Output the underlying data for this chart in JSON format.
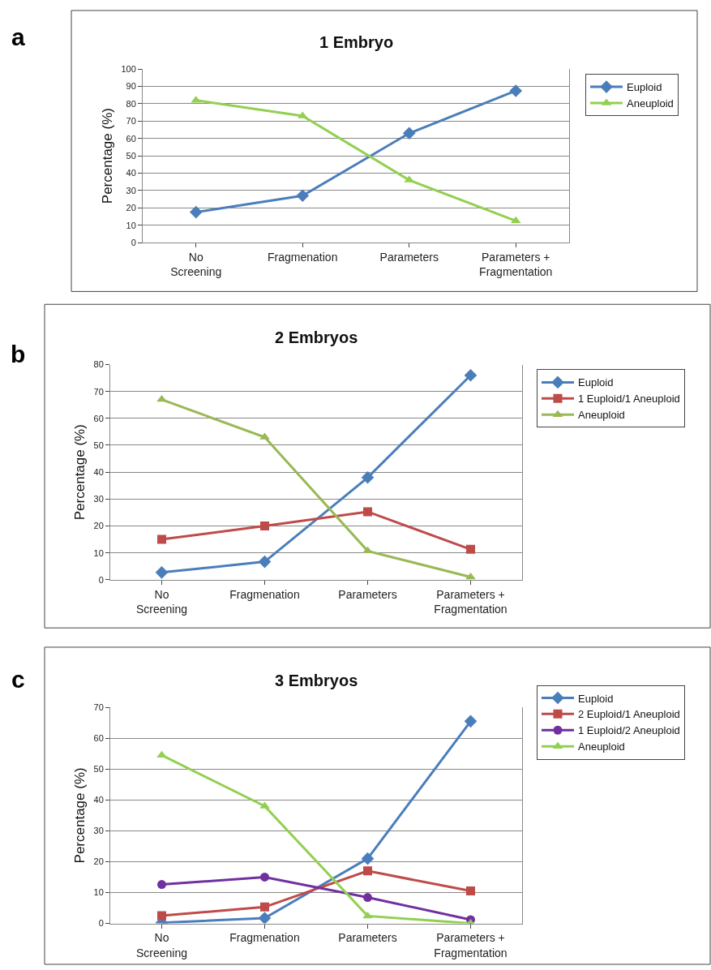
{
  "chart_data": [
    {
      "type": "line",
      "title": "1 Embryo",
      "ylabel": "Percentage (%)",
      "annotations": [
        "a"
      ],
      "categories": [
        "No\nScreening",
        "Fragmenation",
        "Parameters",
        "Parameters +\nFragmentation"
      ],
      "series": [
        {
          "name": "Euploid",
          "color": "#4a7ebb",
          "marker": "diamond",
          "values": [
            17.5,
            27,
            63,
            87.5
          ]
        },
        {
          "name": "Aneuploid",
          "color": "#92d050",
          "marker": "triangle",
          "values": [
            82,
            73,
            36,
            12.5
          ]
        }
      ],
      "ylim": [
        0,
        100
      ],
      "yticks": [
        0,
        10,
        20,
        30,
        40,
        50,
        60,
        70,
        80,
        90,
        100
      ],
      "grid": "y",
      "legend": "right",
      "line_style": "solid"
    },
    {
      "type": "line",
      "title": "2 Embryos",
      "ylabel": "Percentage (%)",
      "annotations": [
        "b"
      ],
      "categories": [
        "No\nScreening",
        "Fragmenation",
        "Parameters",
        "Parameters +\nFragmentation"
      ],
      "series": [
        {
          "name": "Euploid",
          "color": "#4a7ebb",
          "marker": "diamond",
          "values": [
            2.7,
            6.7,
            38,
            76
          ]
        },
        {
          "name": "1 Euploid/1 Aneuploid",
          "color": "#be4b48",
          "marker": "square",
          "values": [
            15,
            20,
            25.3,
            11.3
          ]
        },
        {
          "name": "Aneuploid",
          "color": "#98b954",
          "marker": "triangle",
          "values": [
            67,
            53,
            10.7,
            1
          ]
        }
      ],
      "ylim": [
        0,
        80
      ],
      "yticks": [
        0,
        10,
        20,
        30,
        40,
        50,
        60,
        70,
        80
      ],
      "grid": "y",
      "legend": "right",
      "line_style": "solid"
    },
    {
      "type": "line",
      "title": "3 Embryos",
      "ylabel": "Percentage (%)",
      "annotations": [
        "c"
      ],
      "categories": [
        "No\nScreening",
        "Fragmenation",
        "Parameters",
        "Parameters +\nFragmentation"
      ],
      "series": [
        {
          "name": "Euploid",
          "color": "#4a7ebb",
          "marker": "diamond",
          "values": [
            0.2,
            1.7,
            21,
            65.5
          ]
        },
        {
          "name": "2 Euploid/1 Aneuploid",
          "color": "#be4b48",
          "marker": "square",
          "values": [
            2.5,
            5.3,
            17,
            10.5
          ]
        },
        {
          "name": "1 Euploid/2 Aneuploid",
          "color": "#7030a0",
          "marker": "circle",
          "values": [
            12.6,
            15,
            8.4,
            1.2
          ]
        },
        {
          "name": "Aneuploid",
          "color": "#92d050",
          "marker": "triangle",
          "values": [
            54.5,
            38,
            2.4,
            0
          ]
        }
      ],
      "ylim": [
        0,
        70
      ],
      "yticks": [
        0,
        10,
        20,
        30,
        40,
        50,
        60,
        70
      ],
      "grid": "y",
      "legend": "right",
      "line_style": "solid"
    }
  ]
}
